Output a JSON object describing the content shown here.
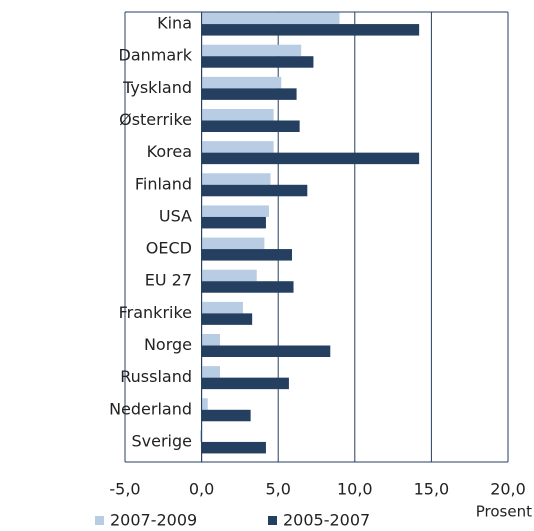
{
  "chart_data": {
    "type": "barh",
    "categories": [
      "Kina",
      "Danmark",
      "Tyskland",
      "Østerrike",
      "Korea",
      "Finland",
      "USA",
      "OECD",
      "EU 27",
      "Frankrike",
      "Norge",
      "Russland",
      "Nederland",
      "Sverige"
    ],
    "series": [
      {
        "name": "2007-2009",
        "color": "#b8cce4",
        "values": [
          9.0,
          6.5,
          5.2,
          4.7,
          4.7,
          4.5,
          4.4,
          4.1,
          3.6,
          2.7,
          1.2,
          1.2,
          0.4,
          -0.1
        ]
      },
      {
        "name": "2005-2007",
        "color": "#243f60",
        "values": [
          14.2,
          7.3,
          6.2,
          6.4,
          14.2,
          6.9,
          4.2,
          5.9,
          6.0,
          3.3,
          8.4,
          5.7,
          3.2,
          4.2
        ]
      }
    ],
    "xlabel": "Prosent",
    "xlim": [
      -5,
      20
    ],
    "xticks": [
      {
        "value": -5,
        "label": "-5,0"
      },
      {
        "value": 0,
        "label": "0,0"
      },
      {
        "value": 5,
        "label": "5,0"
      },
      {
        "value": 10,
        "label": "10,0"
      },
      {
        "value": 15,
        "label": "15,0"
      },
      {
        "value": 20,
        "label": "20,0"
      }
    ],
    "grid": true,
    "legend": "bottom"
  }
}
